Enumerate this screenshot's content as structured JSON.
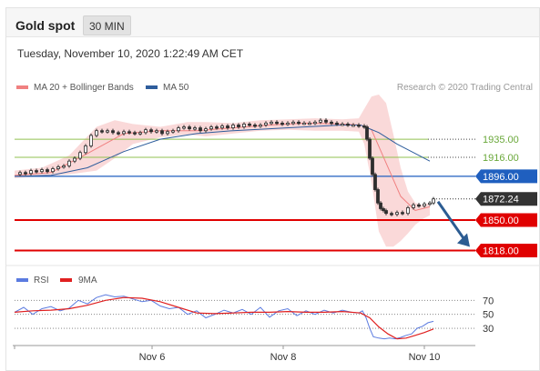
{
  "header": {
    "title": "Gold spot",
    "timeframe": "30 MIN"
  },
  "datetime": "Tuesday, November 10, 2020 1:22:49 AM CET",
  "colors": {
    "bollinger": "#f08080",
    "ma50": "#2e5d9c",
    "candle": "#2d2d2d",
    "support": "#e00000",
    "resistance": "#92c050",
    "pivot": "#1f5fbf",
    "arrow": "#2c5c92",
    "rsi": "#5b7be0",
    "rsi_ma": "#e02020"
  },
  "chart_data": [
    {
      "type": "line",
      "title": "",
      "legend": [
        {
          "name": "MA 20 + Bollinger Bands",
          "icon": "bollinger-swatch"
        },
        {
          "name": "MA 50",
          "icon": "ma50-swatch"
        }
      ],
      "credit": "Research © 2020 Trading Central",
      "x_ticks": [
        "Nov 6",
        "Nov 8",
        "Nov 10"
      ],
      "ylim": [
        1806,
        1982
      ],
      "series": [
        {
          "name": "Gold spot",
          "x": [
            0,
            6,
            12,
            18,
            24,
            30,
            36,
            42,
            48,
            54,
            60,
            66,
            72,
            78,
            84,
            90,
            96,
            102,
            108,
            114,
            120,
            126,
            132,
            138,
            144,
            150,
            156,
            162,
            168,
            174,
            180,
            186,
            192,
            198,
            204,
            210,
            216,
            222,
            228,
            234,
            240,
            246,
            252,
            258,
            264,
            270,
            276,
            282,
            288,
            294,
            300,
            306,
            312,
            318,
            324,
            330,
            336,
            342,
            348,
            354,
            360,
            366,
            372,
            378,
            384,
            387,
            390,
            393,
            396,
            399,
            402,
            405,
            408,
            414,
            420,
            426,
            432,
            438,
            444,
            450,
            456,
            460
          ],
          "values": [
            1898,
            1900,
            1899,
            1902,
            1901,
            1903,
            1901,
            1904,
            1906,
            1907,
            1912,
            1915,
            1921,
            1928,
            1939,
            1944,
            1943,
            1944,
            1942,
            1941,
            1943,
            1942,
            1941,
            1942,
            1945,
            1943,
            1944,
            1941,
            1943,
            1944,
            1947,
            1948,
            1946,
            1947,
            1944,
            1946,
            1948,
            1947,
            1949,
            1947,
            1950,
            1948,
            1951,
            1950,
            1949,
            1950,
            1952,
            1953,
            1952,
            1951,
            1952,
            1953,
            1952,
            1952,
            1952,
            1953,
            1955,
            1953,
            1952,
            1951,
            1951,
            1950,
            1950,
            1949,
            1948,
            1935,
            1915,
            1898,
            1882,
            1868,
            1862,
            1860,
            1857,
            1856,
            1858,
            1857,
            1863,
            1866,
            1865,
            1867,
            1868,
            1872.24
          ]
        },
        {
          "name": "MA 50",
          "x": [
            0,
            40,
            80,
            120,
            160,
            200,
            240,
            280,
            320,
            360,
            380,
            400,
            420,
            440,
            456
          ],
          "values": [
            1896,
            1897,
            1905,
            1922,
            1935,
            1941,
            1944,
            1946,
            1948,
            1950,
            1950,
            1942,
            1930,
            1920,
            1912
          ]
        },
        {
          "name": "MA 20",
          "x": [
            0,
            40,
            80,
            120,
            160,
            200,
            240,
            280,
            320,
            360,
            380,
            392,
            408,
            424,
            440,
            456
          ],
          "values": [
            1897,
            1900,
            1920,
            1941,
            1944,
            1944,
            1947,
            1950,
            1952,
            1951,
            1950,
            1945,
            1910,
            1875,
            1860,
            1864
          ]
        }
      ],
      "bollinger": {
        "x": [
          0,
          30,
          60,
          90,
          110,
          130,
          160,
          190,
          210,
          240,
          270,
          300,
          330,
          360,
          378,
          384,
          392,
          400,
          408,
          416,
          424,
          432,
          440,
          448,
          456
        ],
        "upper": [
          1902,
          1905,
          1918,
          1948,
          1955,
          1951,
          1948,
          1953,
          1953,
          1952,
          1955,
          1956,
          1957,
          1956,
          1957,
          1967,
          1980,
          1982,
          1973,
          1940,
          1905,
          1880,
          1868,
          1866,
          1868
        ],
        "lower": [
          1894,
          1896,
          1898,
          1902,
          1915,
          1930,
          1937,
          1940,
          1938,
          1941,
          1944,
          1945,
          1944,
          1944,
          1943,
          1930,
          1890,
          1838,
          1822,
          1822,
          1828,
          1836,
          1845,
          1851,
          1855
        ]
      },
      "levels": [
        {
          "label": "1935.00",
          "value": 1935,
          "kind": "resistance"
        },
        {
          "label": "1916.00",
          "value": 1916,
          "kind": "resistance"
        },
        {
          "label": "1896.00",
          "value": 1896,
          "kind": "pivot"
        },
        {
          "label": "1872.24",
          "value": 1872.24,
          "kind": "last"
        },
        {
          "label": "1850.00",
          "value": 1850,
          "kind": "support"
        },
        {
          "label": "1818.00",
          "value": 1818,
          "kind": "support"
        }
      ],
      "arrow": {
        "from_value": 1872.24,
        "to_value": 1818
      }
    },
    {
      "type": "line",
      "title": "",
      "legend": [
        {
          "name": "RSI",
          "icon": "rsi-swatch"
        },
        {
          "name": "9MA",
          "icon": "9ma-swatch"
        }
      ],
      "ylim": [
        8,
        86
      ],
      "y_ticks": [
        70,
        50,
        30
      ],
      "series": [
        {
          "name": "RSI",
          "x": [
            0,
            10,
            20,
            30,
            40,
            50,
            60,
            70,
            80,
            90,
            100,
            110,
            120,
            130,
            140,
            150,
            160,
            170,
            180,
            190,
            200,
            210,
            220,
            230,
            240,
            250,
            260,
            270,
            280,
            290,
            300,
            310,
            320,
            330,
            340,
            350,
            360,
            370,
            378,
            382,
            386,
            390,
            394,
            400,
            406,
            412,
            418,
            424,
            430,
            436,
            442,
            448,
            454,
            460
          ],
          "values": [
            53,
            60,
            50,
            58,
            61,
            55,
            59,
            70,
            65,
            74,
            78,
            75,
            76,
            72,
            68,
            70,
            62,
            58,
            60,
            50,
            55,
            45,
            50,
            56,
            52,
            57,
            50,
            60,
            46,
            55,
            58,
            48,
            55,
            50,
            56,
            52,
            56,
            53,
            52,
            55,
            45,
            30,
            18,
            16,
            15,
            16,
            15,
            17,
            20,
            22,
            30,
            33,
            38,
            40
          ]
        },
        {
          "name": "9MA",
          "x": [
            0,
            20,
            40,
            60,
            80,
            100,
            120,
            140,
            160,
            180,
            200,
            220,
            240,
            260,
            280,
            300,
            320,
            340,
            360,
            380,
            390,
            400,
            410,
            420,
            430,
            440,
            450,
            460
          ],
          "values": [
            53,
            55,
            56,
            58,
            63,
            70,
            74,
            73,
            68,
            60,
            52,
            51,
            52,
            53,
            53,
            54,
            53,
            53,
            54,
            52,
            45,
            32,
            22,
            15,
            16,
            20,
            24,
            29
          ]
        }
      ]
    }
  ]
}
